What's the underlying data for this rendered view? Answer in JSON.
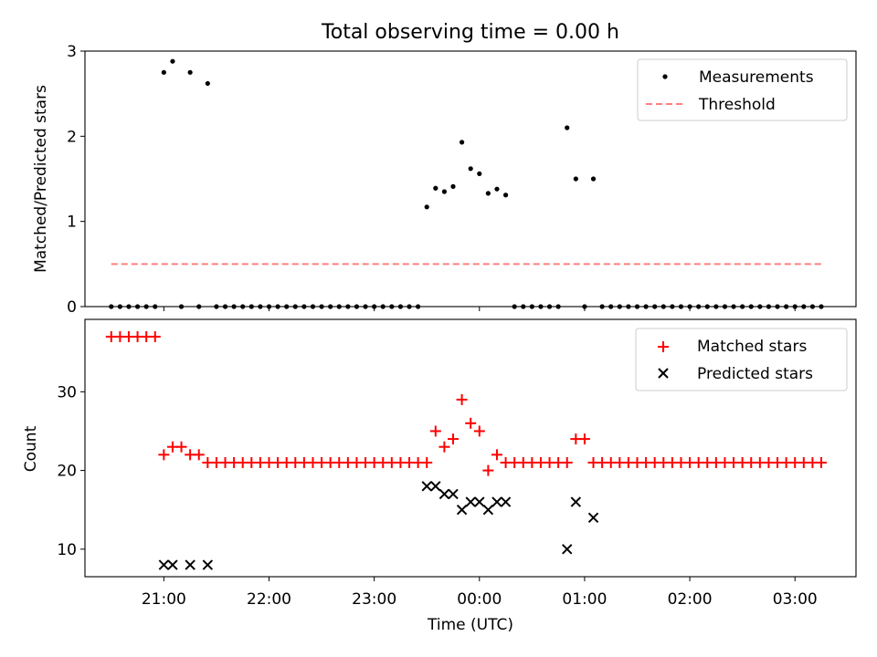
{
  "chart_data": [
    {
      "type": "scatter",
      "title": "Total observing time = 0.00 h",
      "xlabel": "",
      "ylabel": "Matched/Predicted stars",
      "ylim": [
        0,
        3
      ],
      "yticks": [
        0,
        1,
        2,
        3
      ],
      "xlim_hours": [
        20.25,
        27.58
      ],
      "grid": false,
      "legend_position": "top-right",
      "series": [
        {
          "name": "Measurements",
          "marker": "dot",
          "color": "#000000",
          "x": [
            "20:30",
            "20:35",
            "20:40",
            "20:45",
            "20:50",
            "20:55",
            "21:00",
            "21:05",
            "21:10",
            "21:15",
            "21:20",
            "21:25",
            "21:30",
            "21:35",
            "21:40",
            "21:45",
            "21:50",
            "21:55",
            "22:00",
            "22:05",
            "22:10",
            "22:15",
            "22:20",
            "22:25",
            "22:30",
            "22:35",
            "22:40",
            "22:45",
            "22:50",
            "22:55",
            "23:00",
            "23:05",
            "23:10",
            "23:15",
            "23:20",
            "23:25",
            "23:30",
            "23:35",
            "23:40",
            "23:45",
            "23:50",
            "23:55",
            "00:00",
            "00:05",
            "00:10",
            "00:15",
            "00:20",
            "00:25",
            "00:30",
            "00:35",
            "00:40",
            "00:45",
            "00:50",
            "00:55",
            "01:00",
            "01:05",
            "01:10",
            "01:15",
            "01:20",
            "01:25",
            "01:30",
            "01:35",
            "01:40",
            "01:45",
            "01:50",
            "01:55",
            "02:00",
            "02:05",
            "02:10",
            "02:15",
            "02:20",
            "02:25",
            "02:30",
            "02:35",
            "02:40",
            "02:45",
            "02:50",
            "02:55",
            "03:00",
            "03:05",
            "03:10",
            "03:15"
          ],
          "y": [
            0,
            0,
            0,
            0,
            0,
            0,
            2.75,
            2.88,
            0,
            2.75,
            0,
            2.62,
            0,
            0,
            0,
            0,
            0,
            0,
            0,
            0,
            0,
            0,
            0,
            0,
            0,
            0,
            0,
            0,
            0,
            0,
            0,
            0,
            0,
            0,
            0,
            0,
            1.17,
            1.39,
            1.35,
            1.41,
            1.93,
            1.62,
            1.56,
            1.33,
            1.38,
            1.31,
            0,
            0,
            0,
            0,
            0,
            0,
            2.1,
            1.5,
            0,
            1.5,
            0,
            0,
            0,
            0,
            0,
            0,
            0,
            0,
            0,
            0,
            0,
            0,
            0,
            0,
            0,
            0,
            0,
            0,
            0,
            0,
            0,
            0,
            0,
            0,
            0,
            0
          ]
        },
        {
          "name": "Threshold",
          "marker": "dashed-line",
          "color": "#ff7f7f",
          "x": [
            "20:30",
            "03:15"
          ],
          "y": [
            0.5,
            0.5
          ]
        }
      ]
    },
    {
      "type": "scatter",
      "title": "",
      "xlabel": "Time (UTC)",
      "ylabel": "Count",
      "ylim": [
        6.5,
        39.2
      ],
      "yticks": [
        10,
        20,
        30
      ],
      "xticks": [
        "21:00",
        "22:00",
        "23:00",
        "00:00",
        "01:00",
        "02:00",
        "03:00"
      ],
      "xlim_hours": [
        20.25,
        27.58
      ],
      "grid": false,
      "legend_position": "top-right",
      "series": [
        {
          "name": "Matched stars",
          "marker": "plus",
          "color": "#ff0000",
          "x": [
            "20:30",
            "20:35",
            "20:40",
            "20:45",
            "20:50",
            "20:55",
            "21:00",
            "21:05",
            "21:10",
            "21:15",
            "21:20",
            "21:25",
            "21:30",
            "21:35",
            "21:40",
            "21:45",
            "21:50",
            "21:55",
            "22:00",
            "22:05",
            "22:10",
            "22:15",
            "22:20",
            "22:25",
            "22:30",
            "22:35",
            "22:40",
            "22:45",
            "22:50",
            "22:55",
            "23:00",
            "23:05",
            "23:10",
            "23:15",
            "23:20",
            "23:25",
            "23:30",
            "23:35",
            "23:40",
            "23:45",
            "23:50",
            "23:55",
            "00:00",
            "00:05",
            "00:10",
            "00:15",
            "00:20",
            "00:25",
            "00:30",
            "00:35",
            "00:40",
            "00:45",
            "00:50",
            "00:55",
            "01:00",
            "01:05",
            "01:10",
            "01:15",
            "01:20",
            "01:25",
            "01:30",
            "01:35",
            "01:40",
            "01:45",
            "01:50",
            "01:55",
            "02:00",
            "02:05",
            "02:10",
            "02:15",
            "02:20",
            "02:25",
            "02:30",
            "02:35",
            "02:40",
            "02:45",
            "02:50",
            "02:55",
            "03:00",
            "03:05",
            "03:10",
            "03:15"
          ],
          "y": [
            37,
            37,
            37,
            37,
            37,
            37,
            22,
            23,
            23,
            22,
            22,
            21,
            21,
            21,
            21,
            21,
            21,
            21,
            21,
            21,
            21,
            21,
            21,
            21,
            21,
            21,
            21,
            21,
            21,
            21,
            21,
            21,
            21,
            21,
            21,
            21,
            21,
            25,
            23,
            24,
            29,
            26,
            25,
            20,
            22,
            21,
            21,
            21,
            21,
            21,
            21,
            21,
            21,
            24,
            24,
            21,
            21,
            21,
            21,
            21,
            21,
            21,
            21,
            21,
            21,
            21,
            21,
            21,
            21,
            21,
            21,
            21,
            21,
            21,
            21,
            21,
            21,
            21,
            21,
            21,
            21,
            21
          ]
        },
        {
          "name": "Predicted stars",
          "marker": "x",
          "color": "#000000",
          "x": [
            "21:00",
            "21:05",
            "21:15",
            "21:25",
            "23:30",
            "23:35",
            "23:40",
            "23:45",
            "23:50",
            "23:55",
            "00:00",
            "00:05",
            "00:10",
            "00:15",
            "00:50",
            "00:55",
            "01:05"
          ],
          "y": [
            8,
            8,
            8,
            8,
            18,
            18,
            17,
            17,
            15,
            16,
            16,
            15,
            16,
            16,
            10,
            16,
            14
          ]
        }
      ]
    }
  ]
}
